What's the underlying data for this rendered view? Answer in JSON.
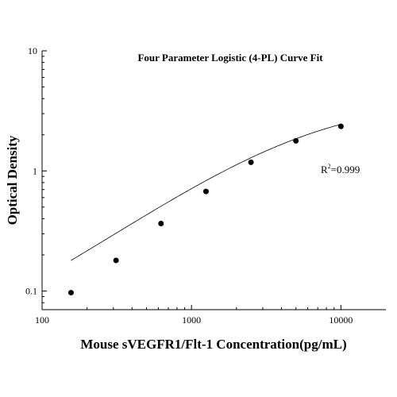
{
  "chart_data": {
    "type": "scatter",
    "title": "Four Parameter Logistic (4-PL) Curve Fit",
    "xlabel": "Mouse sVEGFR1/Flt-1 Concentration(pg/mL)",
    "ylabel": "Optical Density",
    "x_scale": "log",
    "y_scale": "log",
    "xlim": [
      100,
      20000
    ],
    "ylim": [
      0.07,
      10
    ],
    "x_ticks": [
      100,
      1000,
      10000
    ],
    "x_tick_labels": [
      "100",
      "1000",
      "10000"
    ],
    "y_ticks": [
      0.1,
      1,
      10
    ],
    "y_tick_labels": [
      "0.1",
      "1",
      "10"
    ],
    "grid": false,
    "annotation": {
      "base": "R",
      "superscript": "2",
      "rest": "=0.999"
    },
    "series": [
      {
        "x": [
          156.25,
          312.5,
          625,
          1250,
          2500,
          5000,
          10000
        ],
        "y": [
          0.097,
          0.18,
          0.365,
          0.675,
          1.18,
          1.78,
          2.35
        ]
      }
    ],
    "fit_curve": {
      "model": "4PL",
      "a": 0.02,
      "b": 0.87,
      "c": 6000,
      "d": 4.0
    }
  }
}
